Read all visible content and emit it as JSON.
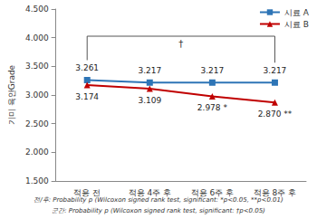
{
  "chart_data": {
    "type": "line",
    "y_label": "기미 육안Grade",
    "categories": [
      "적용 전",
      "적용 4주 후",
      "적용 6주 후",
      "적용 8주 후"
    ],
    "series": [
      {
        "name": "시료 A",
        "color": "#2e75b6",
        "marker": "square",
        "line_style": "solid",
        "values": [
          3.261,
          3.217,
          3.217,
          3.217
        ],
        "value_labels": [
          "3.261",
          "3.217",
          "3.217",
          "3.217"
        ]
      },
      {
        "name": "시료 B",
        "color": "#c00000",
        "marker": "triangle",
        "line_style": "solid",
        "values": [
          3.174,
          3.109,
          2.978,
          2.87
        ],
        "value_labels": [
          "3.174",
          "3.109",
          "2.978 *",
          "2.870 **"
        ]
      }
    ],
    "ylim": [
      1.5,
      4.5
    ],
    "yticks": [
      {
        "value": 1.5,
        "label": "1.500"
      },
      {
        "value": 2.0,
        "label": "2.000"
      },
      {
        "value": 2.5,
        "label": "2.500"
      },
      {
        "value": 3.0,
        "label": "3.000"
      },
      {
        "value": 3.5,
        "label": "3.500"
      },
      {
        "value": 4.0,
        "label": "4.000"
      },
      {
        "value": 4.5,
        "label": "4.500"
      }
    ],
    "grid": false,
    "legend": "upper right",
    "data_labels": true,
    "annotations": {
      "bracket": "†",
      "footnotes": [
        "전/후: Probability p (Wilcoxon signed rank test, significant: *p<0.05, **p<0.01)",
        "군간: Probability p (Wilcoxon signed rank test, significant: †p<0.05)"
      ]
    }
  }
}
